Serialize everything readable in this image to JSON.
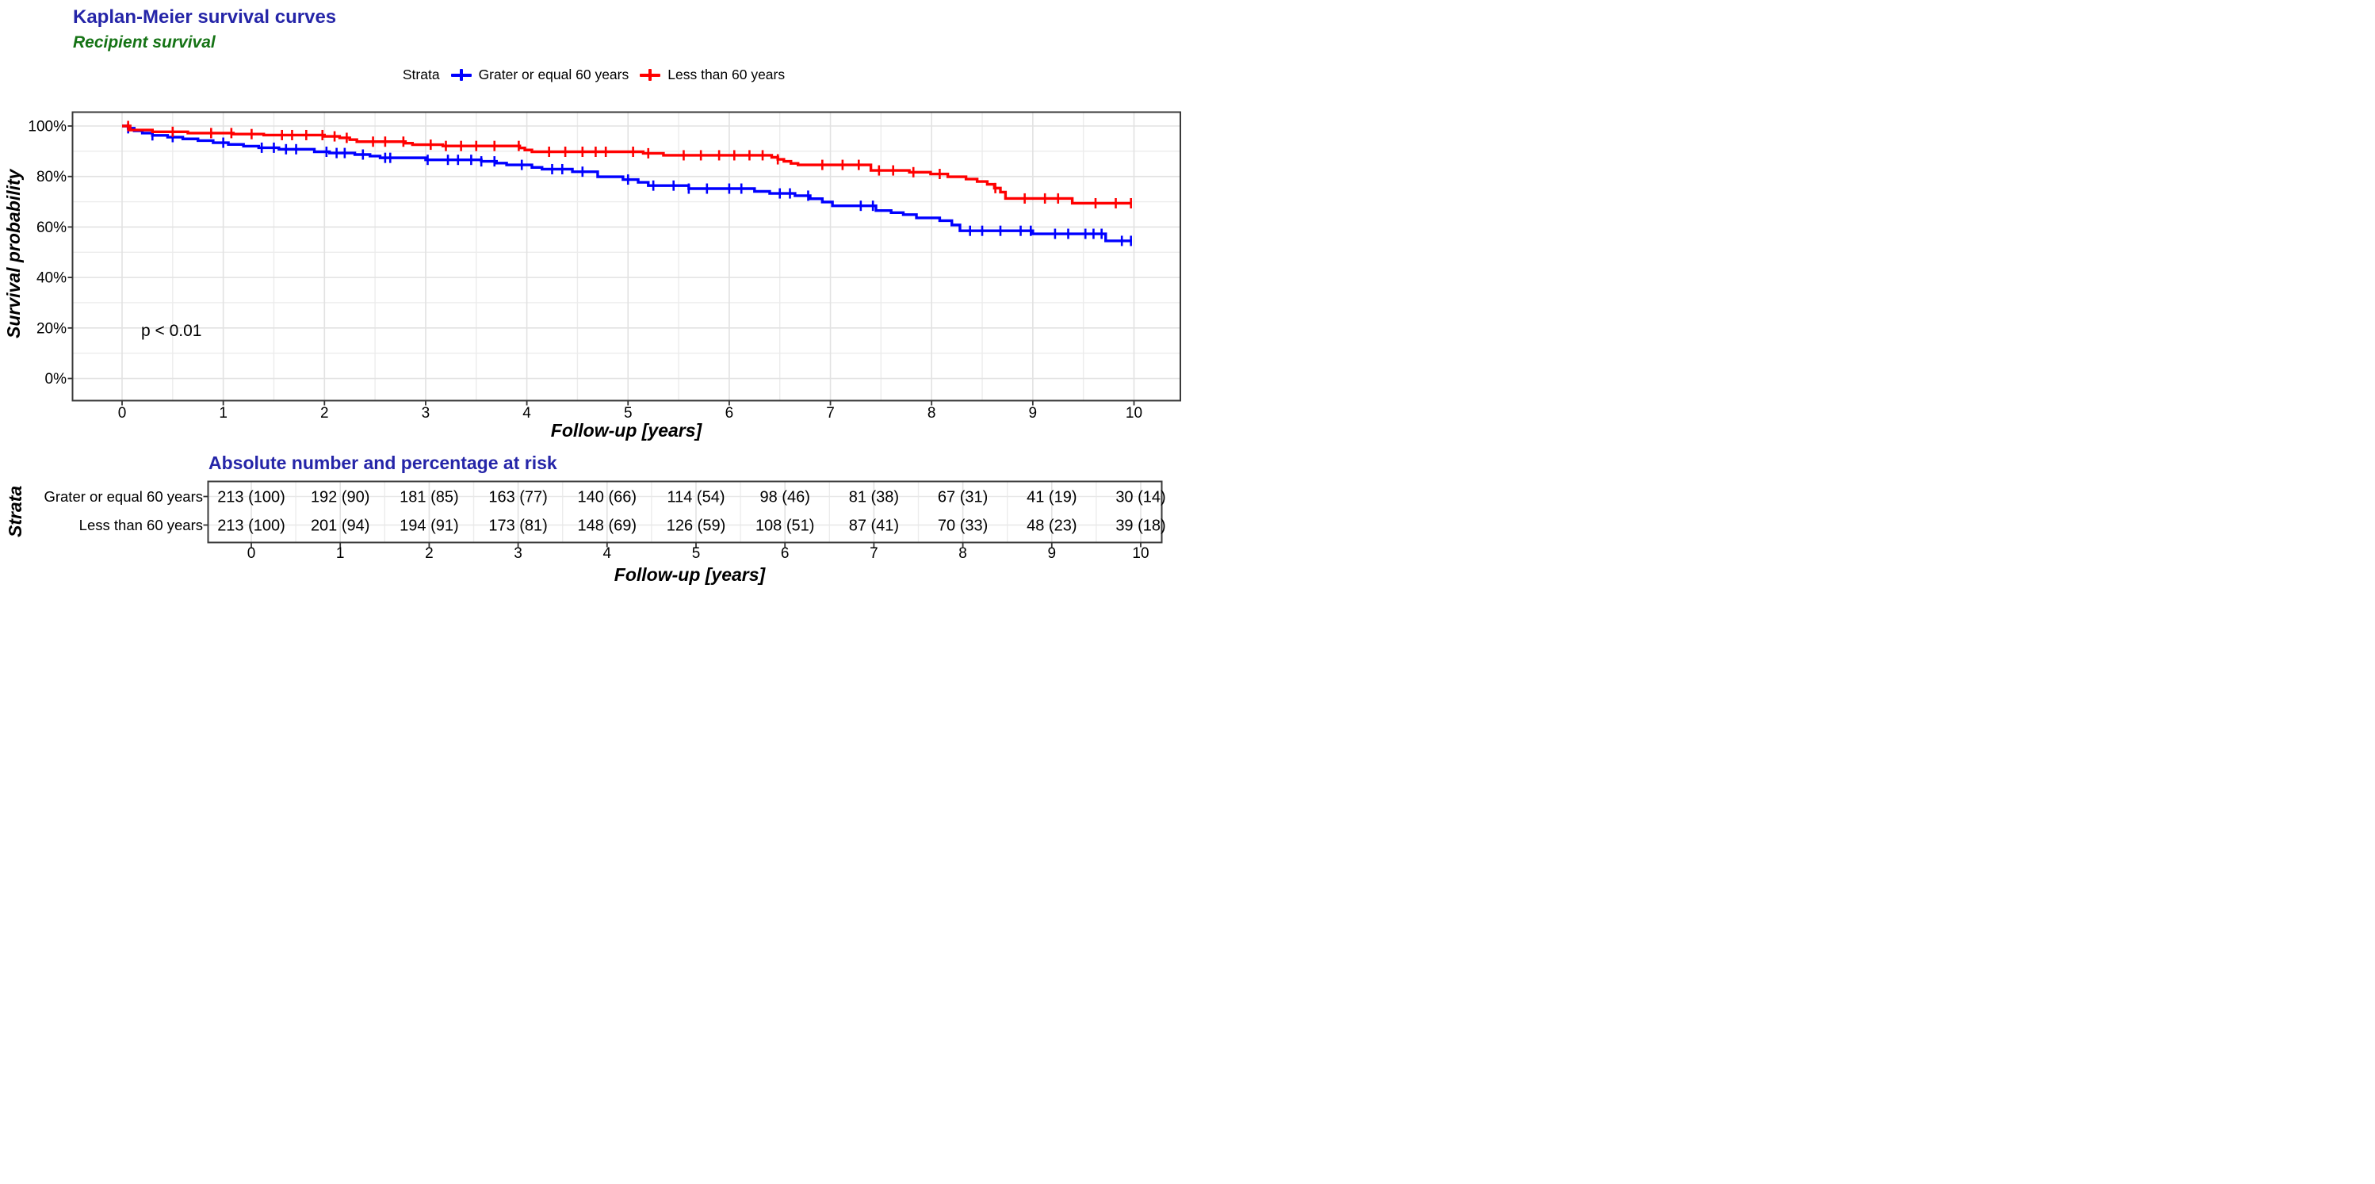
{
  "header": {
    "title": "Kaplan-Meier survival curves",
    "subtitle": "Recipient survival",
    "title_color": "#2525A8",
    "subtitle_color": "#157315"
  },
  "legend": {
    "title": "Strata",
    "items": [
      {
        "label": "Grater or equal 60 years",
        "color": "#0000FF",
        "marker": "plus-icon"
      },
      {
        "label": "Less than 60 years",
        "color": "#FF0000",
        "marker": "plus-icon"
      }
    ]
  },
  "main_plot": {
    "y_axis_title": "Survival probability",
    "x_axis_title": "Follow-up [years]",
    "p_value": "p < 0.01",
    "x_tick_labels": [
      "0",
      "1",
      "2",
      "3",
      "4",
      "5",
      "6",
      "7",
      "8",
      "9",
      "10"
    ],
    "y_tick_labels": [
      "0%",
      "20%",
      "40%",
      "60%",
      "80%",
      "100%"
    ],
    "y_tick_values": [
      0,
      20,
      40,
      60,
      80,
      100
    ]
  },
  "chart_data": {
    "type": "line",
    "subtype": "kaplan-meier-step",
    "title": "Kaplan-Meier survival curves",
    "subtitle": "Recipient survival",
    "xlabel": "Follow-up [years]",
    "ylabel": "Survival probability",
    "xlim": [
      0,
      10
    ],
    "ylim": [
      0,
      100
    ],
    "grid": "on",
    "legend_position": "top",
    "annotation": "p < 0.01",
    "series": [
      {
        "name": "Grater or equal 60 years",
        "color": "#0000FF",
        "steps": [
          [
            0,
            100
          ],
          [
            0.06,
            99.1
          ],
          [
            0.12,
            98.1
          ],
          [
            0.2,
            97.2
          ],
          [
            0.3,
            96.3
          ],
          [
            0.45,
            95.6
          ],
          [
            0.6,
            94.9
          ],
          [
            0.75,
            94.2
          ],
          [
            0.9,
            93.4
          ],
          [
            1.05,
            92.7
          ],
          [
            1.2,
            92.0
          ],
          [
            1.35,
            91.4
          ],
          [
            1.55,
            90.8
          ],
          [
            1.9,
            89.8
          ],
          [
            2.05,
            89.3
          ],
          [
            2.3,
            88.7
          ],
          [
            2.45,
            88.1
          ],
          [
            2.55,
            87.4
          ],
          [
            3.0,
            86.6
          ],
          [
            3.55,
            86.0
          ],
          [
            3.7,
            85.3
          ],
          [
            3.8,
            84.6
          ],
          [
            4.05,
            83.6
          ],
          [
            4.15,
            82.9
          ],
          [
            4.45,
            81.9
          ],
          [
            4.7,
            79.9
          ],
          [
            4.95,
            78.8
          ],
          [
            5.1,
            77.7
          ],
          [
            5.2,
            76.4
          ],
          [
            5.6,
            75.2
          ],
          [
            6.25,
            74.1
          ],
          [
            6.4,
            73.3
          ],
          [
            6.65,
            72.4
          ],
          [
            6.8,
            71.2
          ],
          [
            6.92,
            69.9
          ],
          [
            7.02,
            68.4
          ],
          [
            7.45,
            66.5
          ],
          [
            7.6,
            65.7
          ],
          [
            7.72,
            64.9
          ],
          [
            7.85,
            63.6
          ],
          [
            8.08,
            62.5
          ],
          [
            8.2,
            60.8
          ],
          [
            8.28,
            58.5
          ],
          [
            9.0,
            57.3
          ],
          [
            9.72,
            54.5
          ],
          [
            9.98,
            54.5
          ]
        ],
        "censor_times": [
          0.06,
          0.3,
          0.5,
          1.0,
          1.38,
          1.5,
          1.62,
          1.72,
          2.02,
          2.12,
          2.2,
          2.38,
          2.6,
          2.65,
          3.02,
          3.22,
          3.32,
          3.45,
          3.55,
          3.68,
          3.95,
          4.25,
          4.35,
          4.55,
          5.0,
          5.25,
          5.45,
          5.6,
          5.78,
          6.0,
          6.12,
          6.5,
          6.6,
          6.78,
          7.3,
          7.42,
          8.38,
          8.5,
          8.68,
          8.88,
          8.98,
          9.22,
          9.35,
          9.52,
          9.6,
          9.68,
          9.88,
          9.97
        ]
      },
      {
        "name": "Less than 60 years",
        "color": "#FF0000",
        "steps": [
          [
            0,
            100
          ],
          [
            0.08,
            98.4
          ],
          [
            0.3,
            97.7
          ],
          [
            0.65,
            97.2
          ],
          [
            1.1,
            96.8
          ],
          [
            1.4,
            96.4
          ],
          [
            2.0,
            95.9
          ],
          [
            2.15,
            95.3
          ],
          [
            2.25,
            94.6
          ],
          [
            2.32,
            93.8
          ],
          [
            2.8,
            93.2
          ],
          [
            2.87,
            92.6
          ],
          [
            3.17,
            92.1
          ],
          [
            3.93,
            91.3
          ],
          [
            3.98,
            90.5
          ],
          [
            4.05,
            89.8
          ],
          [
            5.15,
            89.2
          ],
          [
            5.35,
            88.4
          ],
          [
            6.42,
            87.6
          ],
          [
            6.48,
            86.8
          ],
          [
            6.54,
            86.0
          ],
          [
            6.61,
            85.2
          ],
          [
            6.68,
            84.6
          ],
          [
            7.4,
            82.4
          ],
          [
            7.78,
            81.7
          ],
          [
            7.99,
            81.0
          ],
          [
            8.16,
            79.9
          ],
          [
            8.34,
            79.0
          ],
          [
            8.45,
            78.0
          ],
          [
            8.55,
            76.9
          ],
          [
            8.62,
            75.4
          ],
          [
            8.68,
            73.8
          ],
          [
            8.73,
            71.3
          ],
          [
            9.39,
            69.4
          ],
          [
            9.97,
            69.4
          ]
        ],
        "censor_times": [
          0.06,
          0.5,
          0.88,
          1.08,
          1.28,
          1.58,
          1.68,
          1.82,
          1.98,
          2.1,
          2.22,
          2.48,
          2.6,
          2.78,
          3.05,
          3.2,
          3.35,
          3.5,
          3.68,
          3.92,
          4.22,
          4.38,
          4.55,
          4.68,
          4.78,
          5.05,
          5.2,
          5.55,
          5.72,
          5.9,
          6.05,
          6.2,
          6.33,
          6.48,
          6.92,
          7.12,
          7.28,
          7.48,
          7.62,
          7.82,
          8.08,
          8.63,
          8.92,
          9.12,
          9.25,
          9.62,
          9.82,
          9.97
        ]
      }
    ]
  },
  "risk_table": {
    "title": "Absolute number and percentage at risk",
    "title_color": "#2525A8",
    "y_axis_title": "Strata",
    "x_axis_title": "Follow-up [years]",
    "x_tick_labels": [
      "0",
      "1",
      "2",
      "3",
      "4",
      "5",
      "6",
      "7",
      "8",
      "9",
      "10"
    ],
    "rows": [
      {
        "label": "Grater or equal 60 years",
        "values": [
          "213 (100)",
          "192 (90)",
          "181 (85)",
          "163 (77)",
          "140 (66)",
          "114 (54)",
          "98 (46)",
          "81 (38)",
          "67 (31)",
          "41 (19)",
          "30 (14)"
        ]
      },
      {
        "label": "Less than 60 years",
        "values": [
          "213 (100)",
          "201 (94)",
          "194 (91)",
          "173 (81)",
          "148 (69)",
          "126 (59)",
          "108 (51)",
          "87 (41)",
          "70 (33)",
          "48 (23)",
          "39 (18)"
        ]
      }
    ]
  }
}
